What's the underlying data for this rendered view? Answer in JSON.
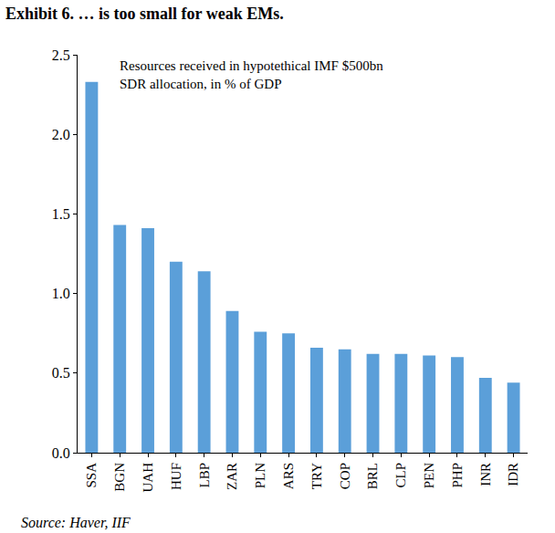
{
  "chart_data": {
    "type": "bar",
    "title": "Exhibit 6. … is too small for weak EMs.",
    "annotation": [
      "Resources received in hypotethical IMF $500bn",
      "SDR allocation, in % of GDP"
    ],
    "source": "Source: Haver, IIF",
    "categories": [
      "SSA",
      "BGN",
      "UAH",
      "HUF",
      "LBP",
      "ZAR",
      "PLN",
      "ARS",
      "TRY",
      "COP",
      "BRL",
      "CLP",
      "PEN",
      "PHP",
      "INR",
      "IDR"
    ],
    "values": [
      2.33,
      1.43,
      1.41,
      1.2,
      1.14,
      0.89,
      0.76,
      0.75,
      0.66,
      0.65,
      0.62,
      0.62,
      0.61,
      0.6,
      0.47,
      0.44
    ],
    "color": "#5b9fd9",
    "ylim": [
      0,
      2.5
    ],
    "yticks": [
      {
        "value": 0,
        "label": "0.0"
      },
      0.5,
      {
        "value": 1,
        "label": "1.0"
      },
      1.5,
      {
        "value": 2,
        "label": "2.0"
      },
      2.5
    ],
    "grid": false
  }
}
